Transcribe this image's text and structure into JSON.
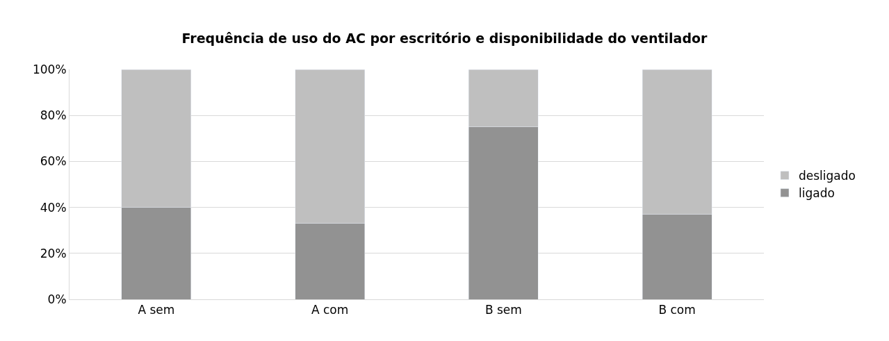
{
  "chart_data": {
    "type": "bar",
    "title": "Frequência de uso do AC por escritório e disponibilidade do ventilador",
    "categories": [
      "A sem",
      "A com",
      "B sem",
      "B com"
    ],
    "series": [
      {
        "name": "ligado",
        "color": "#929292",
        "values": [
          40,
          33,
          75,
          37
        ]
      },
      {
        "name": "desligado",
        "color": "#bfbfbf",
        "values": [
          60,
          67,
          25,
          63
        ]
      }
    ],
    "stacked": true,
    "ylim": [
      0,
      100
    ],
    "yticks": [
      {
        "value": 0,
        "label": "0%"
      },
      {
        "value": 20,
        "label": "20%"
      },
      {
        "value": 40,
        "label": "40%"
      },
      {
        "value": 60,
        "label": "60%"
      },
      {
        "value": 80,
        "label": "80%"
      },
      {
        "value": 100,
        "label": "100%"
      }
    ],
    "grid": "y",
    "legend": "right"
  }
}
